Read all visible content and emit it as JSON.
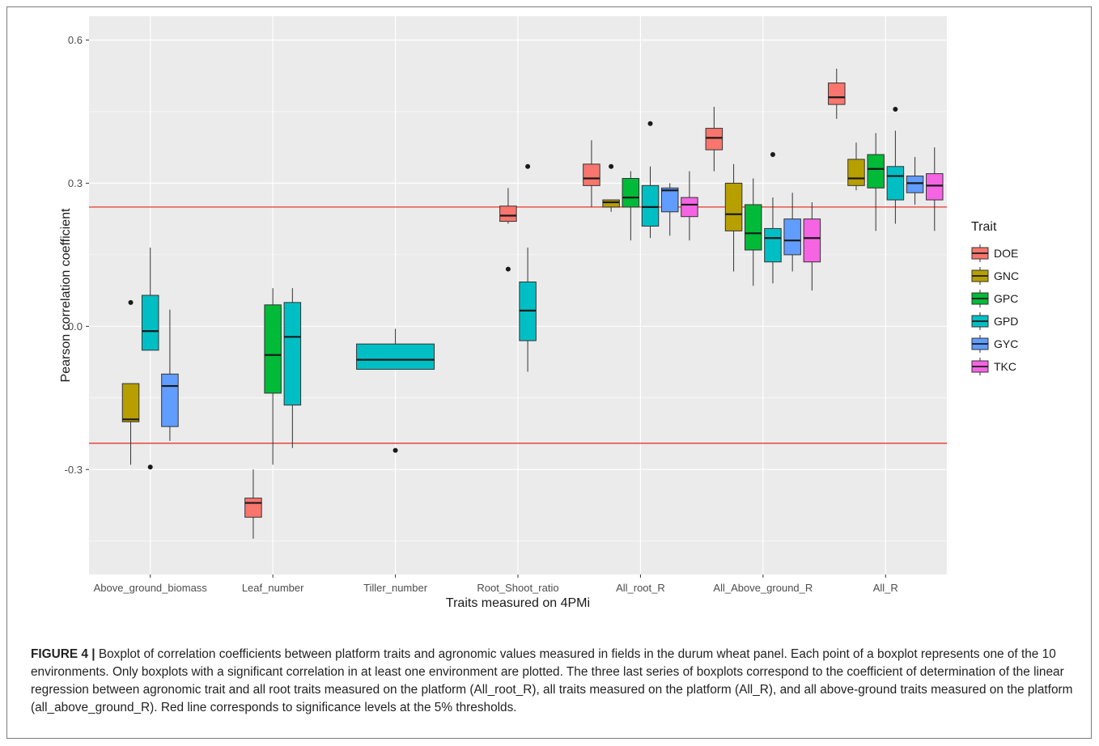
{
  "chart_data": {
    "type": "boxplot",
    "xlabel": "Traits measured on 4PMi",
    "ylabel": "Pearson correlation coefficient",
    "ylim": [
      -0.52,
      0.65
    ],
    "y_ticks": [
      -0.3,
      0.0,
      0.3,
      0.6
    ],
    "y_tick_labels": [
      "-0.3",
      "0.0",
      "0.3",
      "0.6"
    ],
    "grid": true,
    "reference_lines": [
      0.25,
      -0.245
    ],
    "reference_line_color": "#e8352b",
    "categories": [
      "Above_ground_biomass",
      "Leaf_number",
      "Tiller_number",
      "Root_Shoot_ratio",
      "All_root_R",
      "All_Above_ground_R",
      "All_R"
    ],
    "legend": {
      "title": "Trait",
      "position": "right",
      "entries": [
        {
          "label": "DOE",
          "color": "#f8766d"
        },
        {
          "label": "GNC",
          "color": "#b79f00"
        },
        {
          "label": "GPC",
          "color": "#00ba38"
        },
        {
          "label": "GPD",
          "color": "#00bfc4"
        },
        {
          "label": "GYC",
          "color": "#619cff"
        },
        {
          "label": "TKC",
          "color": "#f564e3"
        }
      ]
    },
    "groups": [
      {
        "category": "Above_ground_biomass",
        "boxes": [
          {
            "trait": "GNC",
            "min": -0.29,
            "q1": -0.2,
            "median": -0.195,
            "q3": -0.12,
            "max": -0.12,
            "outliers": [
              0.05
            ]
          },
          {
            "trait": "GPD",
            "min": -0.05,
            "q1": -0.05,
            "median": -0.01,
            "q3": 0.065,
            "max": 0.165,
            "outliers": [
              -0.295
            ]
          },
          {
            "trait": "GYC",
            "min": -0.24,
            "q1": -0.21,
            "median": -0.125,
            "q3": -0.1,
            "max": 0.035,
            "outliers": []
          }
        ]
      },
      {
        "category": "Leaf_number",
        "boxes": [
          {
            "trait": "DOE",
            "min": -0.445,
            "q1": -0.4,
            "median": -0.37,
            "q3": -0.36,
            "max": -0.3,
            "outliers": []
          },
          {
            "trait": "GPC",
            "min": -0.29,
            "q1": -0.14,
            "median": -0.06,
            "q3": 0.045,
            "max": 0.08,
            "outliers": []
          },
          {
            "trait": "GPD",
            "min": -0.255,
            "q1": -0.165,
            "median": -0.022,
            "q3": 0.05,
            "max": 0.08,
            "outliers": []
          }
        ]
      },
      {
        "category": "Tiller_number",
        "boxes": [
          {
            "trait": "GPD",
            "min": -0.09,
            "q1": -0.09,
            "median": -0.07,
            "q3": -0.037,
            "max": -0.005,
            "outliers": [
              -0.26
            ]
          }
        ]
      },
      {
        "category": "Root_Shoot_ratio",
        "boxes": [
          {
            "trait": "DOE",
            "min": 0.215,
            "q1": 0.22,
            "median": 0.232,
            "q3": 0.252,
            "max": 0.29,
            "outliers": [
              0.12
            ]
          },
          {
            "trait": "GPD",
            "min": -0.095,
            "q1": -0.03,
            "median": 0.033,
            "q3": 0.093,
            "max": 0.165,
            "outliers": [
              0.335
            ]
          }
        ]
      },
      {
        "category": "All_root_R",
        "boxes": [
          {
            "trait": "DOE",
            "min": 0.25,
            "q1": 0.295,
            "median": 0.31,
            "q3": 0.34,
            "max": 0.39,
            "outliers": []
          },
          {
            "trait": "GNC",
            "min": 0.24,
            "q1": 0.25,
            "median": 0.26,
            "q3": 0.265,
            "max": 0.265,
            "outliers": [
              0.335
            ]
          },
          {
            "trait": "GPC",
            "min": 0.18,
            "q1": 0.25,
            "median": 0.27,
            "q3": 0.31,
            "max": 0.325,
            "outliers": []
          },
          {
            "trait": "GPD",
            "min": 0.185,
            "q1": 0.21,
            "median": 0.25,
            "q3": 0.295,
            "max": 0.335,
            "outliers": [
              0.425
            ]
          },
          {
            "trait": "GYC",
            "min": 0.19,
            "q1": 0.24,
            "median": 0.285,
            "q3": 0.29,
            "max": 0.3,
            "outliers": []
          },
          {
            "trait": "TKC",
            "min": 0.18,
            "q1": 0.23,
            "median": 0.255,
            "q3": 0.27,
            "max": 0.325,
            "outliers": []
          }
        ]
      },
      {
        "category": "All_Above_ground_R",
        "boxes": [
          {
            "trait": "DOE",
            "min": 0.325,
            "q1": 0.37,
            "median": 0.395,
            "q3": 0.415,
            "max": 0.46,
            "outliers": []
          },
          {
            "trait": "GNC",
            "min": 0.115,
            "q1": 0.2,
            "median": 0.235,
            "q3": 0.3,
            "max": 0.34,
            "outliers": []
          },
          {
            "trait": "GPC",
            "min": 0.085,
            "q1": 0.16,
            "median": 0.195,
            "q3": 0.255,
            "max": 0.31,
            "outliers": []
          },
          {
            "trait": "GPD",
            "min": 0.09,
            "q1": 0.135,
            "median": 0.185,
            "q3": 0.205,
            "max": 0.27,
            "outliers": [
              0.36
            ]
          },
          {
            "trait": "GYC",
            "min": 0.115,
            "q1": 0.15,
            "median": 0.18,
            "q3": 0.225,
            "max": 0.28,
            "outliers": []
          },
          {
            "trait": "TKC",
            "min": 0.075,
            "q1": 0.135,
            "median": 0.185,
            "q3": 0.225,
            "max": 0.26,
            "outliers": []
          }
        ]
      },
      {
        "category": "All_R",
        "boxes": [
          {
            "trait": "DOE",
            "min": 0.435,
            "q1": 0.465,
            "median": 0.48,
            "q3": 0.51,
            "max": 0.54,
            "outliers": []
          },
          {
            "trait": "GNC",
            "min": 0.285,
            "q1": 0.295,
            "median": 0.31,
            "q3": 0.35,
            "max": 0.385,
            "outliers": []
          },
          {
            "trait": "GPC",
            "min": 0.2,
            "q1": 0.29,
            "median": 0.33,
            "q3": 0.36,
            "max": 0.405,
            "outliers": []
          },
          {
            "trait": "GPD",
            "min": 0.215,
            "q1": 0.265,
            "median": 0.315,
            "q3": 0.335,
            "max": 0.41,
            "outliers": [
              0.455
            ]
          },
          {
            "trait": "GYC",
            "min": 0.255,
            "q1": 0.28,
            "median": 0.3,
            "q3": 0.315,
            "max": 0.355,
            "outliers": []
          },
          {
            "trait": "TKC",
            "min": 0.2,
            "q1": 0.265,
            "median": 0.295,
            "q3": 0.32,
            "max": 0.375,
            "outliers": []
          }
        ]
      }
    ]
  },
  "caption": {
    "label": "FIGURE 4 |",
    "text": " Boxplot of correlation coefficients between platform traits and agronomic values measured in fields in the durum wheat panel. Each point of a boxplot represents one of the 10 environments. Only boxplots with a significant correlation in at least one environment are plotted. The three last series of boxplots correspond to the coefficient of determination of the linear regression between agronomic trait and all root traits measured on the platform (All_root_R), all traits measured on the platform (All_R), and all above-ground traits measured on the platform (all_above_ground_R). Red line corresponds to significance levels at the 5% thresholds."
  }
}
